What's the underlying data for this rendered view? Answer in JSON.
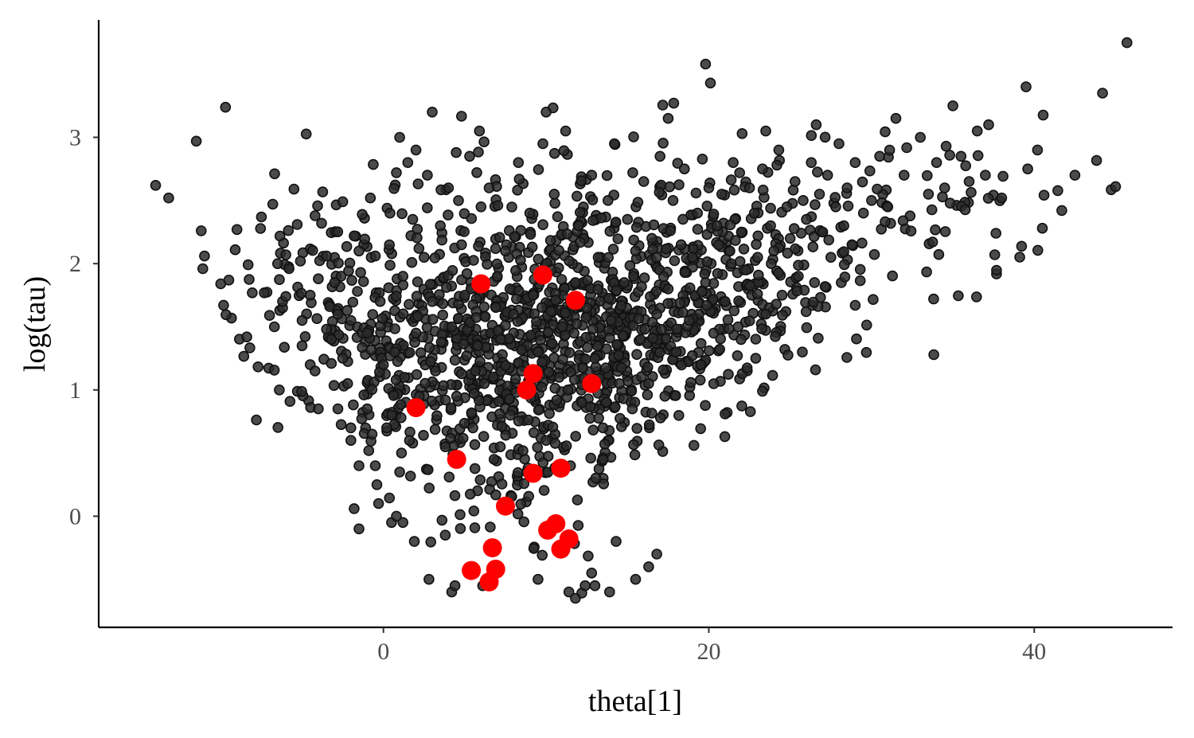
{
  "chart_data": {
    "type": "scatter",
    "xlabel": "theta[1]",
    "ylabel": "log(tau)",
    "xlim": [
      -17.5,
      48.5
    ],
    "ylim": [
      -0.88,
      3.93
    ],
    "x_ticks": [
      0,
      20,
      40
    ],
    "x_tick_labels": [
      "0",
      "20",
      "40"
    ],
    "y_ticks": [
      0,
      1,
      2,
      3
    ],
    "y_tick_labels": [
      "0",
      "1",
      "2",
      "3"
    ],
    "grid": false,
    "legend": "none",
    "series": [
      {
        "color": "#1a1a1a",
        "description_points": "posterior draws",
        "x": [
          -14,
          -13.2,
          -11.5,
          -11.2,
          -11,
          -11.1,
          -10,
          -9.5,
          -9,
          -8.4,
          -7.5,
          -7,
          -6.7,
          -6.5,
          -6.2,
          -6.2,
          -6,
          -6,
          -5.8,
          -5.5,
          -5.3,
          -5.1,
          -5,
          -5,
          -4.5,
          -4.5,
          -4.2,
          -4.2,
          -4,
          -3.8,
          -3.5,
          -3.5,
          -3.3,
          -3.2,
          -3.2,
          -3,
          -2.8,
          -2.8,
          -2.6,
          -2.5,
          -2.2,
          -2,
          -2,
          -1.8,
          -1.6,
          -1.5,
          -1.5,
          -1.4,
          -1.3,
          -1.2,
          -1,
          -1,
          -0.8,
          -0.7,
          -0.5,
          -0.4,
          -0.2,
          0,
          0.2,
          0.4,
          0.5,
          0.7,
          0.8,
          1,
          1.2,
          1.3,
          1.5,
          1.6,
          1.8,
          2,
          2.2,
          2.5,
          2.7,
          3,
          3.2,
          3.5,
          3.8,
          4,
          4.2,
          4.5,
          4.8,
          5,
          5.3,
          5.5,
          5.8,
          6,
          6.2,
          6.5,
          6.8,
          7,
          7.2,
          7.5,
          7.8,
          8,
          8.3,
          8.5,
          8.8,
          9,
          9.2,
          9.5,
          9.8,
          10,
          10.3,
          10.5,
          10.8,
          11,
          11.2,
          11.5,
          11.8,
          12,
          12.2,
          12.5,
          12.8,
          13,
          13.2,
          13.5,
          13.8,
          14,
          14.2,
          14.5,
          14.8,
          15,
          15.3,
          15.5,
          15.8,
          16,
          16.3,
          16.5,
          16.8,
          17,
          17.3,
          17.5,
          17.8,
          18,
          18.3,
          18.5,
          18.8,
          19,
          19.3,
          19.5,
          19.8,
          20,
          20.3,
          20.5,
          20.8,
          21,
          21.3,
          21.5,
          21.8,
          22,
          22.3,
          22.5,
          22.8,
          23,
          23.3,
          23.5,
          23.8,
          24,
          24.3,
          24.5,
          24.8,
          25,
          25.3,
          25.5,
          25.8,
          26,
          26.3,
          26.5,
          26.8,
          27,
          27.3,
          27.5,
          27.8,
          28,
          28.3,
          28.5,
          28.8,
          29,
          29.5,
          30,
          30.5,
          31,
          31.5,
          32,
          33,
          33.5,
          34,
          34.5,
          35,
          35.5,
          36,
          36.5,
          37,
          37.2,
          38,
          39.5,
          39.6,
          40.2,
          40.5,
          42.5,
          44.2,
          45,
          45.7,
          19.8,
          20.1,
          26.6,
          1,
          2,
          3,
          5.9,
          10,
          17.5,
          23.5,
          4.2,
          4.4,
          11.4,
          11.8,
          12.4,
          12.8,
          13.9,
          15.5,
          16.3,
          14.3,
          -1.8,
          -1.5,
          1.2,
          1.9,
          3.8,
          0.5,
          0.8,
          -0.3,
          29,
          23.3,
          21,
          2.8,
          6.1,
          9.5,
          13,
          16.8,
          -4,
          -6.4,
          -2,
          -0.5
        ],
        "y": [
          2.62,
          2.52,
          2.97,
          2.26,
          2.06,
          1.96,
          1.84,
          1.87,
          2.27,
          1.42,
          2.37,
          1.59,
          1.5,
          2,
          1.65,
          1.7,
          1.74,
          2.07,
          1.96,
          2.59,
          2.31,
          2.02,
          1.55,
          1.35,
          1.75,
          1.2,
          1.15,
          2.38,
          1.88,
          2.32,
          2.06,
          1.48,
          1.66,
          1.21,
          1.4,
          1.85,
          0.85,
          1.6,
          1.9,
          2.49,
          1.05,
          1.55,
          0.6,
          2.22,
          1.78,
          2.1,
          0.4,
          1.93,
          2.39,
          0.96,
          1.45,
          0.85,
          2.52,
          0.65,
          2.06,
          0.25,
          1.7,
          1.2,
          0.7,
          2.4,
          0.8,
          1.3,
          2.72,
          0.35,
          1.9,
          1.1,
          2.8,
          0.6,
          2.35,
          1.45,
          0.95,
          2.05,
          2.7,
          1.7,
          1.15,
          2.3,
          0.55,
          2.6,
          1.5,
          0.95,
          2.15,
          1.75,
          2.85,
          0.7,
          1.35,
          2.45,
          1.05,
          2.6,
          0.45,
          1.9,
          1.4,
          2.1,
          0.8,
          1.6,
          2.8,
          1.15,
          0.35,
          2.4,
          1.75,
          1.3,
          2.95,
          0.6,
          1.95,
          2.55,
          1.1,
          1.5,
          3.05,
          0.4,
          1.85,
          2.3,
          0.9,
          1.65,
          2.7,
          1.25,
          2.05,
          0.7,
          2.5,
          1.55,
          2.95,
          1.05,
          1.85,
          2.35,
          0.85,
          2.1,
          1.4,
          2.65,
          1.05,
          2.2,
          1.6,
          2.85,
          0.95,
          1.8,
          2.5,
          1.3,
          2.15,
          2.75,
          1.55,
          2.05,
          2.4,
          1.2,
          1.85,
          2.6,
          1.45,
          2.3,
          2.55,
          1.7,
          2.1,
          2.8,
          1.5,
          2.25,
          1.95,
          2.6,
          2.4,
          2.05,
          2.75,
          1.6,
          2.3,
          2.1,
          2.9,
          1.75,
          2.45,
          2.2,
          2.65,
          1.9,
          2.5,
          2.35,
          2.8,
          1.85,
          2.55,
          2.25,
          2.7,
          2.05,
          2.45,
          2.95,
          2.3,
          2.6,
          2.15,
          2.8,
          2.4,
          2.5,
          2.85,
          2.45,
          3.15,
          2.7,
          3,
          2.55,
          2.8,
          2.6,
          3.25,
          2.85,
          2.65,
          3.05,
          2.7,
          3.1,
          2.52,
          3.4,
          2.75,
          2.9,
          2.28,
          2.7,
          3.35,
          2.61,
          3.75,
          3.58,
          3.43,
          3.1,
          3,
          2.9,
          3.2,
          3.05,
          3.2,
          3.15,
          3.05,
          -0.6,
          -0.55,
          -0.6,
          -0.65,
          -0.55,
          -0.45,
          -0.6,
          -0.5,
          -0.4,
          -0.2,
          0.06,
          -0.1,
          -0.05,
          -0.2,
          -0.15,
          -0.05,
          0,
          0.1,
          1.67,
          0.99,
          0.81,
          -0.5,
          -0.55,
          -0.5,
          -0.55,
          -0.3,
          0.85,
          1.0,
          0.7,
          0.4
        ],
        "x_extra_note": "",
        "y_extra_note": ""
      },
      {
        "color": "#ff0000",
        "description_points": "highlighted draws",
        "x": [
          6,
          9.8,
          11.8,
          9.2,
          8.8,
          12.8,
          2,
          4.5,
          9.2,
          10.9,
          7.5,
          10.6,
          10.1,
          11.4,
          10.9,
          6.7,
          5.4,
          6.9,
          6.5
        ],
        "y": [
          1.84,
          1.91,
          1.71,
          1.13,
          1.0,
          1.05,
          0.86,
          0.45,
          0.34,
          0.38,
          0.08,
          -0.06,
          -0.11,
          -0.18,
          -0.26,
          -0.25,
          -0.43,
          -0.42,
          -0.52
        ]
      }
    ]
  }
}
